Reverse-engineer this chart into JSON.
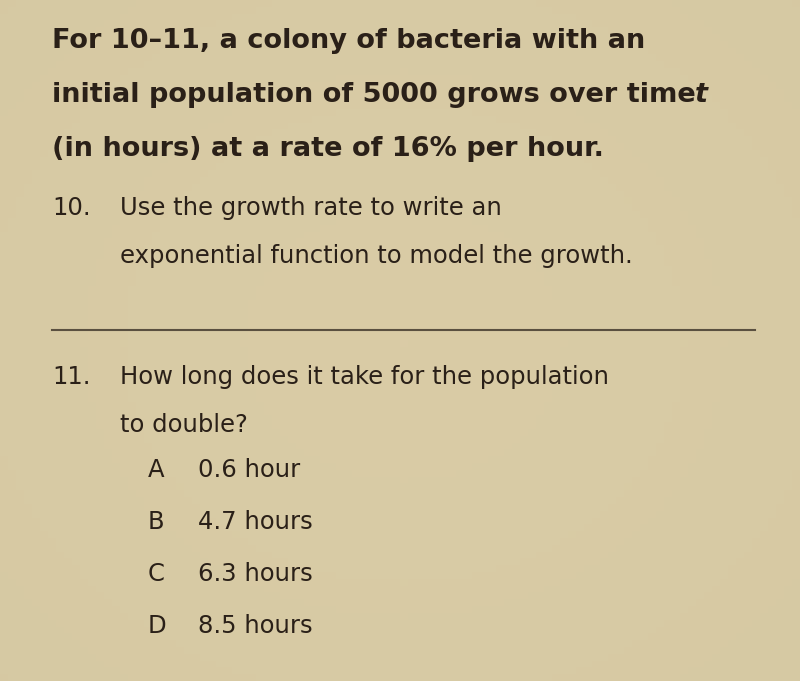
{
  "bg_color": "#cfc09a",
  "bg_center_color": "#ddd0aa",
  "text_color": "#2a2018",
  "header_line1": "For 10–11, a colony of bacteria with an",
  "header_line2_main": "initial population of 5000 grows over time ",
  "header_line2_italic": "t",
  "header_line3": "(in hours) at a rate of 16% per hour.",
  "q10_number": "10.",
  "q10_line1": "Use the growth rate to write an",
  "q10_line2": "exponential function to model the growth.",
  "q11_number": "11.",
  "q11_line1": "How long does it take for the population",
  "q11_line2": "to double?",
  "choices": [
    {
      "letter": "A",
      "text": "0.6 hour"
    },
    {
      "letter": "B",
      "text": "4.7 hours"
    },
    {
      "letter": "C",
      "text": "6.3 hours"
    },
    {
      "letter": "D",
      "text": "8.5 hours"
    }
  ]
}
